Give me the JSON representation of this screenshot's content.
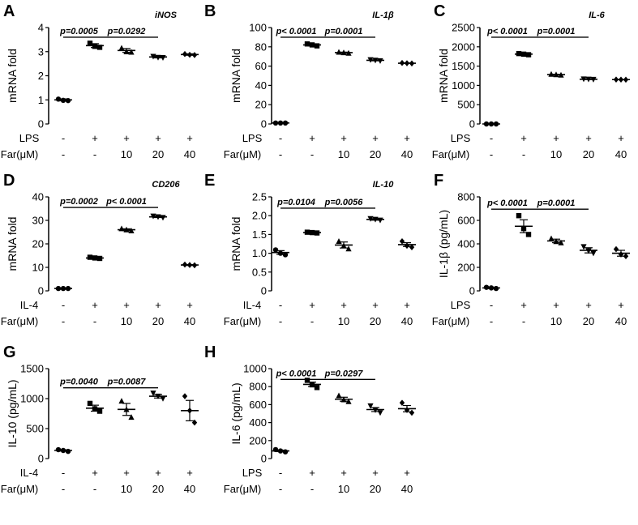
{
  "chart_data": [
    {
      "panel": "A",
      "type": "scatter",
      "title": "iNOS",
      "ylabel": "mRNA fold",
      "ylim": [
        0,
        4
      ],
      "yticks": [
        "0",
        "1",
        "2",
        "3",
        "4"
      ],
      "categories": [
        {
          "label": "LPS",
          "values": [
            "-",
            "+",
            "+",
            "+",
            "+"
          ]
        },
        {
          "label": "Far(μM)",
          "values": [
            "-",
            "-",
            "10",
            "20",
            "40"
          ]
        }
      ],
      "groups": [
        {
          "mean": 1.0,
          "sem": 0.04,
          "points": [
            1.03,
            0.98,
            0.97
          ],
          "marker": "circle"
        },
        {
          "mean": 3.25,
          "sem": 0.08,
          "points": [
            3.35,
            3.22,
            3.18
          ],
          "marker": "square"
        },
        {
          "mean": 3.05,
          "sem": 0.08,
          "points": [
            3.15,
            3.0,
            2.98
          ],
          "marker": "triangle"
        },
        {
          "mean": 2.78,
          "sem": 0.04,
          "points": [
            2.8,
            2.76,
            2.75
          ],
          "marker": "invtriangle"
        },
        {
          "mean": 2.88,
          "sem": 0.03,
          "points": [
            2.9,
            2.87,
            2.86
          ],
          "marker": "diamond"
        }
      ],
      "comparisons": [
        {
          "from": 0,
          "to": 1,
          "text": "p=0.0005",
          "y": 3.6
        },
        {
          "from": 1,
          "to": 3,
          "text": "p=0.0292",
          "y": 3.6
        }
      ]
    },
    {
      "panel": "B",
      "type": "scatter",
      "title": "IL-1β",
      "ylabel": "mRNA fold",
      "ylim": [
        0,
        100
      ],
      "yticks": [
        "0",
        "20",
        "40",
        "60",
        "80",
        "100"
      ],
      "categories": [
        {
          "label": "LPS",
          "values": [
            "-",
            "+",
            "+",
            "+",
            "+"
          ]
        },
        {
          "label": "Far(μM)",
          "values": [
            "-",
            "-",
            "10",
            "20",
            "40"
          ]
        }
      ],
      "groups": [
        {
          "mean": 1,
          "sem": 0.2,
          "points": [
            1,
            1,
            1
          ],
          "marker": "circle"
        },
        {
          "mean": 82,
          "sem": 1.0,
          "points": [
            83,
            82,
            81
          ],
          "marker": "square"
        },
        {
          "mean": 74,
          "sem": 0.5,
          "points": [
            74.5,
            74,
            73.5
          ],
          "marker": "triangle"
        },
        {
          "mean": 66,
          "sem": 0.5,
          "points": [
            66.5,
            66,
            65.5
          ],
          "marker": "invtriangle"
        },
        {
          "mean": 63,
          "sem": 0.3,
          "points": [
            63.3,
            63,
            62.8
          ],
          "marker": "diamond"
        }
      ],
      "comparisons": [
        {
          "from": 0,
          "to": 1,
          "text": "p< 0.0001",
          "y": 90
        },
        {
          "from": 1,
          "to": 3,
          "text": "p=0.0001",
          "y": 90
        }
      ]
    },
    {
      "panel": "C",
      "type": "scatter",
      "title": "IL-6",
      "ylabel": "mRNA fold",
      "ylim": [
        0,
        2500
      ],
      "yticks": [
        "0",
        "500",
        "1000",
        "1500",
        "2000",
        "2500"
      ],
      "categories": [
        {
          "label": "LPS",
          "values": [
            "-",
            "+",
            "+",
            "+",
            "+"
          ]
        },
        {
          "label": "Far(μM)",
          "values": [
            "-",
            "-",
            "10",
            "20",
            "40"
          ]
        }
      ],
      "groups": [
        {
          "mean": 0,
          "sem": 0,
          "points": [
            0,
            0,
            0
          ],
          "marker": "circle"
        },
        {
          "mean": 1810,
          "sem": 15,
          "points": [
            1825,
            1810,
            1795
          ],
          "marker": "square"
        },
        {
          "mean": 1280,
          "sem": 10,
          "points": [
            1290,
            1280,
            1270
          ],
          "marker": "triangle"
        },
        {
          "mean": 1160,
          "sem": 8,
          "points": [
            1165,
            1160,
            1155
          ],
          "marker": "invtriangle"
        },
        {
          "mean": 1150,
          "sem": 5,
          "points": [
            1152,
            1150,
            1148
          ],
          "marker": "diamond"
        }
      ],
      "comparisons": [
        {
          "from": 0,
          "to": 1,
          "text": "p< 0.0001",
          "y": 2250
        },
        {
          "from": 1,
          "to": 3,
          "text": "p=0.0001",
          "y": 2250
        }
      ]
    },
    {
      "panel": "D",
      "type": "scatter",
      "title": "CD206",
      "ylabel": "mRNA fold",
      "ylim": [
        0,
        40
      ],
      "yticks": [
        "0",
        "10",
        "20",
        "30",
        "40"
      ],
      "categories": [
        {
          "label": "IL-4",
          "values": [
            "-",
            "+",
            "+",
            "+",
            "+"
          ]
        },
        {
          "label": "Far(μM)",
          "values": [
            "-",
            "-",
            "10",
            "20",
            "40"
          ]
        }
      ],
      "groups": [
        {
          "mean": 1,
          "sem": 0.1,
          "points": [
            1,
            1,
            1
          ],
          "marker": "circle"
        },
        {
          "mean": 14,
          "sem": 0.3,
          "points": [
            14.3,
            14,
            13.8
          ],
          "marker": "square"
        },
        {
          "mean": 26,
          "sem": 0.4,
          "points": [
            26.5,
            26,
            25.6
          ],
          "marker": "triangle"
        },
        {
          "mean": 31.5,
          "sem": 0.3,
          "points": [
            31.8,
            31.5,
            31.2
          ],
          "marker": "invtriangle"
        },
        {
          "mean": 11,
          "sem": 0.2,
          "points": [
            11.2,
            11,
            10.9
          ],
          "marker": "diamond"
        }
      ],
      "comparisons": [
        {
          "from": 0,
          "to": 1,
          "text": "p=0.0002",
          "y": 35.5
        },
        {
          "from": 1,
          "to": 3,
          "text": "p< 0.0001",
          "y": 35.5
        }
      ]
    },
    {
      "panel": "E",
      "type": "scatter",
      "title": "IL-10",
      "ylabel": "mRNA fold",
      "ylim": [
        0,
        2.5
      ],
      "yticks": [
        "0",
        "0.5",
        "1.0",
        "1.5",
        "2.0",
        "2.5"
      ],
      "categories": [
        {
          "label": "IL-4",
          "values": [
            "-",
            "+",
            "+",
            "+",
            "+"
          ]
        },
        {
          "label": "Far(μM)",
          "values": [
            "-",
            "-",
            "10",
            "20",
            "40"
          ]
        }
      ],
      "groups": [
        {
          "mean": 1.02,
          "sem": 0.05,
          "points": [
            1.09,
            1.0,
            0.96
          ],
          "marker": "circle"
        },
        {
          "mean": 1.55,
          "sem": 0.01,
          "points": [
            1.56,
            1.55,
            1.54
          ],
          "marker": "square"
        },
        {
          "mean": 1.22,
          "sem": 0.08,
          "points": [
            1.32,
            1.2,
            1.12
          ],
          "marker": "triangle"
        },
        {
          "mean": 1.9,
          "sem": 0.02,
          "points": [
            1.92,
            1.9,
            1.88
          ],
          "marker": "invtriangle"
        },
        {
          "mean": 1.23,
          "sem": 0.05,
          "points": [
            1.32,
            1.2,
            1.16
          ],
          "marker": "diamond"
        }
      ],
      "comparisons": [
        {
          "from": 0,
          "to": 1,
          "text": "p=0.0104",
          "y": 2.2
        },
        {
          "from": 1,
          "to": 3,
          "text": "p=0.0056",
          "y": 2.2
        }
      ]
    },
    {
      "panel": "F",
      "type": "scatter",
      "title": "",
      "ylabel": "IL-1β (pg/mL)",
      "ylim": [
        0,
        800
      ],
      "yticks": [
        "0",
        "200",
        "400",
        "600",
        "800"
      ],
      "categories": [
        {
          "label": "LPS",
          "values": [
            "-",
            "+",
            "+",
            "+",
            "+"
          ]
        },
        {
          "label": "Far(μM)",
          "values": [
            "-",
            "-",
            "10",
            "20",
            "40"
          ]
        }
      ],
      "groups": [
        {
          "mean": 25,
          "sem": 6,
          "points": [
            30,
            25,
            20
          ],
          "marker": "circle"
        },
        {
          "mean": 550,
          "sem": 55,
          "points": [
            640,
            530,
            480
          ],
          "marker": "square"
        },
        {
          "mean": 425,
          "sem": 15,
          "points": [
            445,
            420,
            410
          ],
          "marker": "triangle"
        },
        {
          "mean": 345,
          "sem": 22,
          "points": [
            375,
            340,
            320
          ],
          "marker": "invtriangle"
        },
        {
          "mean": 320,
          "sem": 25,
          "points": [
            355,
            310,
            295
          ],
          "marker": "diamond"
        }
      ],
      "comparisons": [
        {
          "from": 0,
          "to": 1,
          "text": "p< 0.0001",
          "y": 695
        },
        {
          "from": 1,
          "to": 3,
          "text": "p=0.0001",
          "y": 695
        }
      ]
    },
    {
      "panel": "G",
      "type": "scatter",
      "title": "",
      "ylabel": "IL-10 (pg/mL)",
      "ylim": [
        0,
        1500
      ],
      "yticks": [
        "0",
        "500",
        "1000",
        "1500"
      ],
      "categories": [
        {
          "label": "IL-4",
          "values": [
            "-",
            "+",
            "+",
            "+",
            "+"
          ]
        },
        {
          "label": "Far(μM)",
          "values": [
            "-",
            "-",
            "10",
            "20",
            "40"
          ]
        }
      ],
      "groups": [
        {
          "mean": 135,
          "sem": 10,
          "points": [
            148,
            135,
            120
          ],
          "marker": "circle"
        },
        {
          "mean": 840,
          "sem": 50,
          "points": [
            920,
            830,
            790
          ],
          "marker": "square"
        },
        {
          "mean": 820,
          "sem": 100,
          "points": [
            960,
            820,
            690
          ],
          "marker": "triangle"
        },
        {
          "mean": 1040,
          "sem": 30,
          "points": [
            1090,
            1040,
            1000
          ],
          "marker": "invtriangle"
        },
        {
          "mean": 800,
          "sem": 170,
          "points": [
            1040,
            800,
            600
          ],
          "marker": "diamond"
        }
      ],
      "comparisons": [
        {
          "from": 0,
          "to": 1,
          "text": "p=0.0040",
          "y": 1180
        },
        {
          "from": 1,
          "to": 3,
          "text": "p=0.0087",
          "y": 1180
        }
      ]
    },
    {
      "panel": "H",
      "type": "scatter",
      "title": "",
      "ylabel": "IL-6 (pg/mL)",
      "ylim": [
        0,
        1000
      ],
      "yticks": [
        "0",
        "200",
        "400",
        "600",
        "800",
        "1000"
      ],
      "categories": [
        {
          "label": "LPS",
          "values": [
            "-",
            "+",
            "+",
            "+",
            "+"
          ]
        },
        {
          "label": "Far(μM)",
          "values": [
            "-",
            "-",
            "10",
            "20",
            "40"
          ]
        }
      ],
      "groups": [
        {
          "mean": 85,
          "sem": 8,
          "points": [
            100,
            85,
            75
          ],
          "marker": "circle"
        },
        {
          "mean": 825,
          "sem": 25,
          "points": [
            870,
            820,
            790
          ],
          "marker": "square"
        },
        {
          "mean": 660,
          "sem": 22,
          "points": [
            700,
            655,
            635
          ],
          "marker": "triangle"
        },
        {
          "mean": 545,
          "sem": 22,
          "points": [
            585,
            540,
            510
          ],
          "marker": "invtriangle"
        },
        {
          "mean": 555,
          "sem": 35,
          "points": [
            620,
            540,
            510
          ],
          "marker": "diamond"
        }
      ],
      "comparisons": [
        {
          "from": 0,
          "to": 1,
          "text": "p< 0.0001",
          "y": 880
        },
        {
          "from": 1,
          "to": 3,
          "text": "p=0.0297",
          "y": 880
        }
      ]
    }
  ]
}
